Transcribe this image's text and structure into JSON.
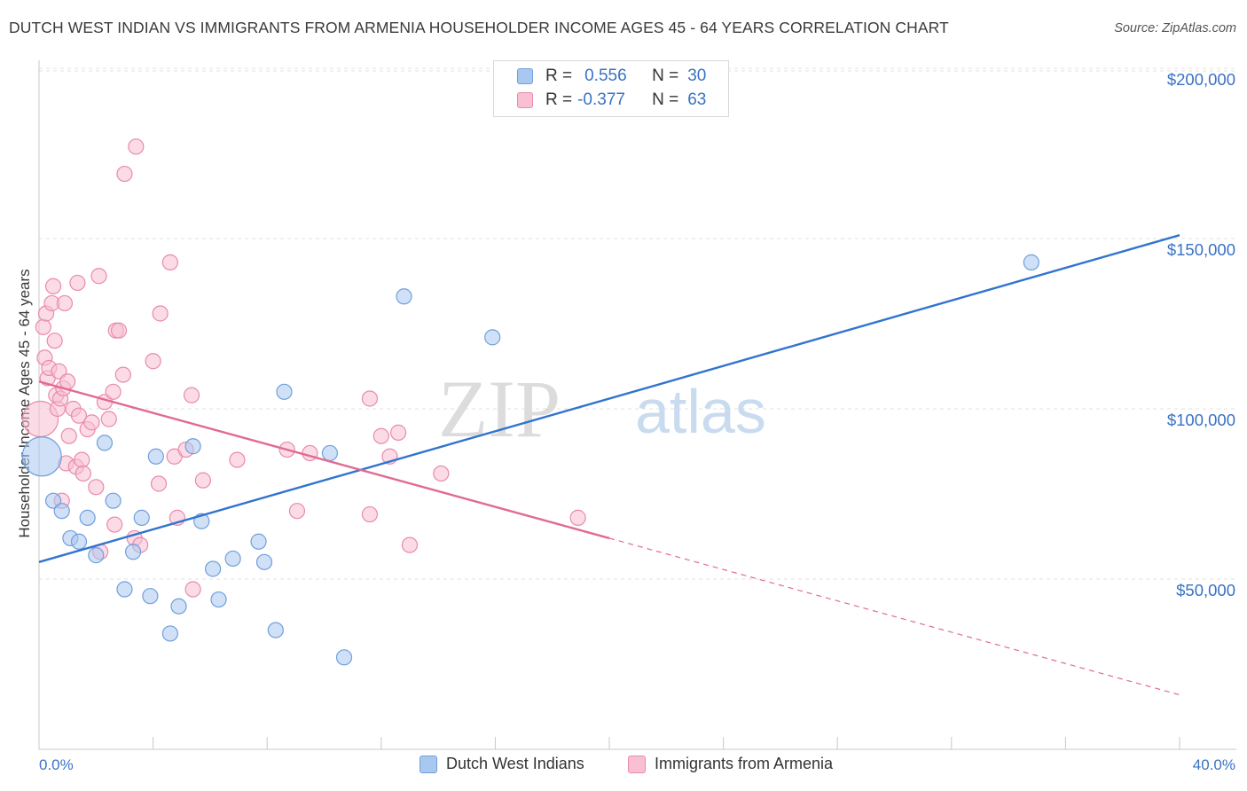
{
  "title": "DUTCH WEST INDIAN VS IMMIGRANTS FROM ARMENIA HOUSEHOLDER INCOME AGES 45 - 64 YEARS CORRELATION CHART",
  "source": "Source: ZipAtlas.com",
  "watermark": {
    "zip": "ZIP",
    "atlas": "atlas"
  },
  "legend": {
    "rows": [
      {
        "r_label": "R =",
        "r_value": "0.556",
        "n_label": "N =",
        "n_value": "30",
        "color": "#a9c8f0",
        "border": "#6f9fdc"
      },
      {
        "r_label": "R =",
        "r_value": "-0.377",
        "n_label": "N =",
        "n_value": "63",
        "color": "#f8c0d2",
        "border": "#e98aa9"
      }
    ]
  },
  "bottom_legend": [
    "Dutch West Indians",
    "Immigrants from Armenia"
  ],
  "x_axis": {
    "min_label": "0.0%",
    "max_label": "40.0%"
  },
  "chart_data": {
    "type": "scatter",
    "ylabel": "Householder Income Ages 45 - 64 years",
    "xlim": [
      0,
      40
    ],
    "ylim": [
      0,
      210000
    ],
    "y_ticks": [
      50000,
      100000,
      150000,
      200000
    ],
    "y_tick_labels": [
      "$50,000",
      "$100,000",
      "$150,000",
      "$200,000"
    ],
    "grid": true,
    "series": [
      {
        "name": "Dutch West Indians",
        "color": "#6f9fdc",
        "fill": "#a9c8f0",
        "trend": {
          "x": [
            0,
            40
          ],
          "y": [
            55000,
            151000
          ],
          "color": "#3174cf"
        },
        "points": [
          [
            0.1,
            86000
          ],
          [
            0.5,
            73000
          ],
          [
            0.8,
            70000
          ],
          [
            1.1,
            62000
          ],
          [
            1.4,
            61000
          ],
          [
            1.7,
            68000
          ],
          [
            2.0,
            57000
          ],
          [
            2.3,
            90000
          ],
          [
            2.6,
            73000
          ],
          [
            3.0,
            47000
          ],
          [
            3.3,
            58000
          ],
          [
            3.6,
            68000
          ],
          [
            3.9,
            45000
          ],
          [
            4.1,
            86000
          ],
          [
            4.6,
            34000
          ],
          [
            4.9,
            42000
          ],
          [
            5.4,
            89000
          ],
          [
            5.7,
            67000
          ],
          [
            6.1,
            53000
          ],
          [
            6.3,
            44000
          ],
          [
            6.8,
            56000
          ],
          [
            7.7,
            61000
          ],
          [
            7.9,
            55000
          ],
          [
            8.3,
            35000
          ],
          [
            8.6,
            105000
          ],
          [
            10.2,
            87000
          ],
          [
            10.7,
            27000
          ],
          [
            12.8,
            133000
          ],
          [
            15.9,
            121000
          ],
          [
            34.8,
            143000
          ]
        ]
      },
      {
        "name": "Immigrants from Armenia",
        "color": "#e98aa9",
        "fill": "#f8c0d2",
        "trend": {
          "x": [
            0,
            20
          ],
          "y": [
            108000,
            62000
          ],
          "color": "#e06b94"
        },
        "trend_dashed": {
          "x": [
            20,
            40
          ],
          "y": [
            62000,
            16000
          ]
        },
        "points": [
          [
            0.05,
            97000
          ],
          [
            0.15,
            124000
          ],
          [
            0.2,
            115000
          ],
          [
            0.25,
            128000
          ],
          [
            0.3,
            109000
          ],
          [
            0.35,
            112000
          ],
          [
            0.45,
            131000
          ],
          [
            0.5,
            136000
          ],
          [
            0.55,
            120000
          ],
          [
            0.6,
            104000
          ],
          [
            0.65,
            100000
          ],
          [
            0.7,
            111000
          ],
          [
            0.75,
            103000
          ],
          [
            0.8,
            73000
          ],
          [
            0.85,
            106000
          ],
          [
            0.9,
            131000
          ],
          [
            0.95,
            84000
          ],
          [
            1.0,
            108000
          ],
          [
            1.05,
            92000
          ],
          [
            1.2,
            100000
          ],
          [
            1.3,
            83000
          ],
          [
            1.35,
            137000
          ],
          [
            1.4,
            98000
          ],
          [
            1.5,
            85000
          ],
          [
            1.55,
            81000
          ],
          [
            1.7,
            94000
          ],
          [
            1.85,
            96000
          ],
          [
            2.0,
            77000
          ],
          [
            2.1,
            139000
          ],
          [
            2.15,
            58000
          ],
          [
            2.3,
            102000
          ],
          [
            2.45,
            97000
          ],
          [
            2.6,
            105000
          ],
          [
            2.65,
            66000
          ],
          [
            2.7,
            123000
          ],
          [
            2.8,
            123000
          ],
          [
            2.95,
            110000
          ],
          [
            3.0,
            169000
          ],
          [
            3.35,
            62000
          ],
          [
            3.4,
            177000
          ],
          [
            3.55,
            60000
          ],
          [
            4.0,
            114000
          ],
          [
            4.2,
            78000
          ],
          [
            4.25,
            128000
          ],
          [
            4.6,
            143000
          ],
          [
            4.75,
            86000
          ],
          [
            4.85,
            68000
          ],
          [
            5.15,
            88000
          ],
          [
            5.35,
            104000
          ],
          [
            5.4,
            47000
          ],
          [
            5.75,
            79000
          ],
          [
            6.95,
            85000
          ],
          [
            8.7,
            88000
          ],
          [
            9.05,
            70000
          ],
          [
            9.5,
            87000
          ],
          [
            11.6,
            103000
          ],
          [
            11.6,
            69000
          ],
          [
            12.0,
            92000
          ],
          [
            12.3,
            86000
          ],
          [
            12.6,
            93000
          ],
          [
            13.0,
            60000
          ],
          [
            14.1,
            81000
          ],
          [
            18.9,
            68000
          ]
        ]
      }
    ]
  }
}
